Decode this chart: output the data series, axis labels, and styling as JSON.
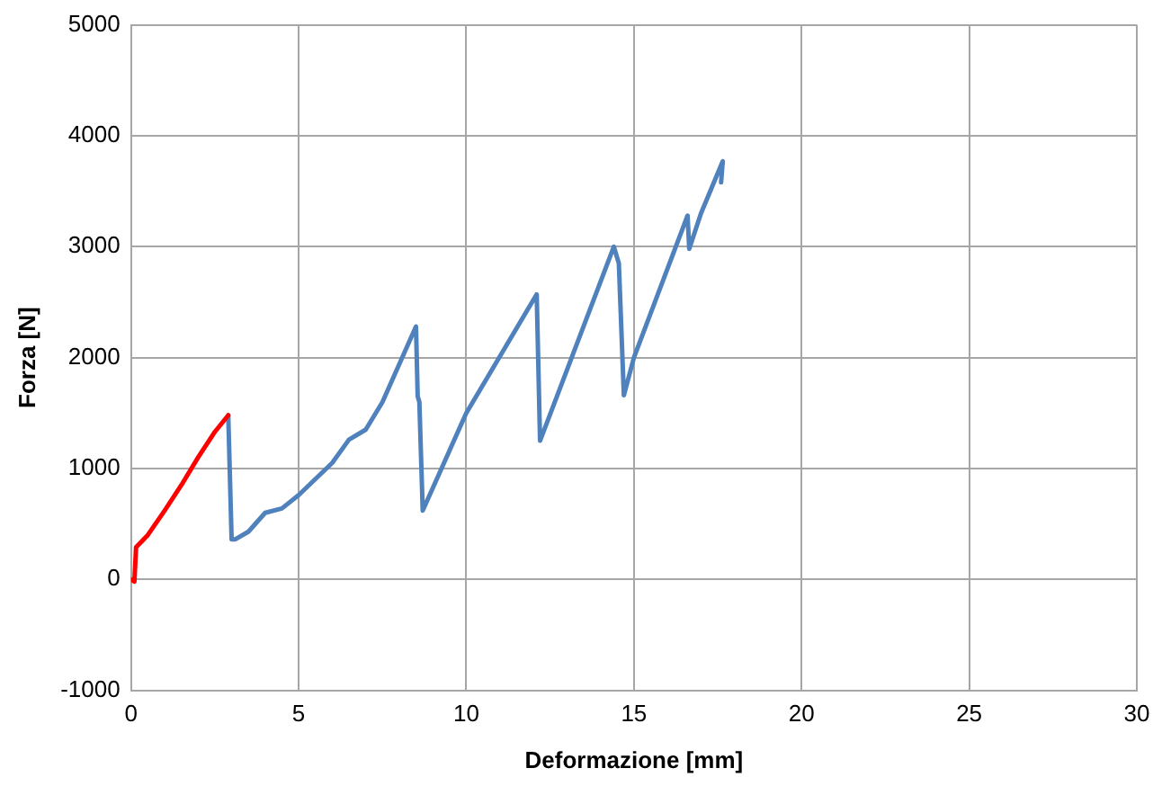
{
  "chart_data": {
    "type": "line",
    "xlabel": "Deformazione [mm]",
    "ylabel": "Forza [N]",
    "xlim": [
      0,
      30
    ],
    "xticks": [
      0,
      5,
      10,
      15,
      20,
      25,
      30
    ],
    "ylim": [
      -1000,
      5000
    ],
    "yticks": [
      -1000,
      0,
      1000,
      2000,
      3000,
      4000,
      5000
    ],
    "grid": true,
    "legend": false,
    "marker": "none",
    "line_style": "solid",
    "series": [
      {
        "color": "#ff0000",
        "x": [
          0,
          0.1,
          0.15,
          0.5,
          1,
          1.5,
          2,
          2.5,
          2.9
        ],
        "values": [
          0,
          -20,
          290,
          400,
          620,
          850,
          1100,
          1330,
          1480
        ]
      },
      {
        "color": "#4f81bd",
        "x": [
          2.9,
          3.0,
          3.1,
          3.5,
          4,
          4.5,
          5,
          6,
          6.5,
          7,
          7.5,
          8.5,
          8.55,
          8.6,
          8.7,
          10,
          12.1,
          12.2,
          14.4,
          14.55,
          14.7,
          15,
          16,
          16.6,
          16.65,
          17,
          17.65,
          17.6
        ],
        "values": [
          1480,
          360,
          360,
          430,
          600,
          640,
          760,
          1050,
          1260,
          1350,
          1600,
          2280,
          1650,
          1600,
          620,
          1500,
          2570,
          1250,
          3000,
          2850,
          1660,
          2000,
          2800,
          3280,
          2980,
          3300,
          3770,
          3580
        ]
      }
    ]
  }
}
